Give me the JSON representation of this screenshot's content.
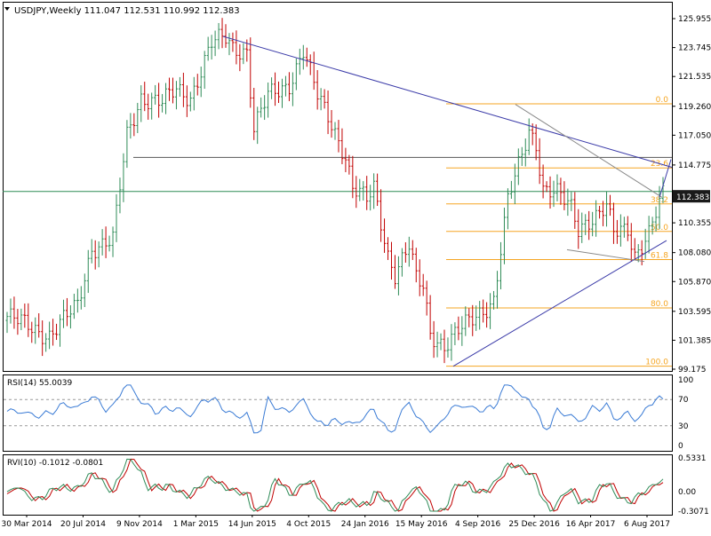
{
  "header": {
    "symbol": "USDJPY,Weekly",
    "ohlc": "111.047 112.531 110.992 112.383"
  },
  "chart_data": {
    "type": "candlestick",
    "price_axis": {
      "ticks": [
        "125.955",
        "123.745",
        "121.535",
        "119.260",
        "117.050",
        "114.775",
        "112.383",
        "110.355",
        "108.080",
        "105.870",
        "103.595",
        "101.385",
        "99.175"
      ],
      "ylim": [
        99.175,
        125.955
      ],
      "current_price": "112.383"
    },
    "x_axis": {
      "ticks": [
        "30 Mar 2014",
        "20 Jul 2014",
        "9 Nov 2014",
        "1 Mar 2015",
        "14 Jun 2015",
        "4 Oct 2015",
        "24 Jan 2016",
        "15 May 2016",
        "4 Sep 2016",
        "25 Dec 2016",
        "16 Apr 2017",
        "6 Aug 2017"
      ]
    },
    "price_anchors": [
      [
        0,
        103.2
      ],
      [
        8,
        102.2
      ],
      [
        12,
        101.8
      ],
      [
        20,
        104.0
      ],
      [
        24,
        108.5
      ],
      [
        30,
        109.0
      ],
      [
        34,
        117.0
      ],
      [
        38,
        120.0
      ],
      [
        44,
        119.5
      ],
      [
        48,
        120.5
      ],
      [
        52,
        120.0
      ],
      [
        58,
        124.0
      ],
      [
        62,
        124.5
      ],
      [
        64,
        123.8
      ],
      [
        68,
        123.5
      ],
      [
        70,
        117.5
      ],
      [
        74,
        120.0
      ],
      [
        80,
        121.0
      ],
      [
        84,
        123.5
      ],
      [
        88,
        120.0
      ],
      [
        92,
        118.0
      ],
      [
        96,
        115.5
      ],
      [
        98,
        113.0
      ],
      [
        102,
        112.0
      ],
      [
        104,
        113.0
      ],
      [
        108,
        108.0
      ],
      [
        110,
        106.5
      ],
      [
        114,
        108.5
      ],
      [
        116,
        106.0
      ],
      [
        118,
        105.5
      ],
      [
        120,
        102.0
      ],
      [
        124,
        101.0
      ],
      [
        126,
        101.5
      ],
      [
        130,
        102.5
      ],
      [
        134,
        103.5
      ],
      [
        138,
        104.5
      ],
      [
        142,
        112.0
      ],
      [
        146,
        115.5
      ],
      [
        148,
        117.5
      ],
      [
        150,
        116.5
      ],
      [
        152,
        113.0
      ],
      [
        156,
        112.5
      ],
      [
        160,
        111.5
      ],
      [
        162,
        110.0
      ],
      [
        164,
        110.5
      ],
      [
        168,
        111.0
      ],
      [
        170,
        111.5
      ],
      [
        172,
        109.5
      ],
      [
        176,
        110.0
      ],
      [
        178,
        108.0
      ],
      [
        182,
        109.5
      ],
      [
        184,
        111.0
      ],
      [
        186,
        112.383
      ]
    ],
    "fibonacci": {
      "levels": [
        {
          "label": "0.0",
          "price": 119.45
        },
        {
          "label": "23.6",
          "price": 114.55
        },
        {
          "label": "38.2",
          "price": 111.8
        },
        {
          "label": "50.0",
          "price": 109.7
        },
        {
          "label": "61.8",
          "price": 107.55
        },
        {
          "label": "80.0",
          "price": 103.85
        },
        {
          "label": "100.0",
          "price": 99.4
        }
      ],
      "color": "#f5a623"
    },
    "horizontal_levels": [
      {
        "price": 115.35,
        "color": "#555555"
      },
      {
        "price": 112.75,
        "color": "#2e8b57"
      }
    ],
    "colors": {
      "bull": "#2e8b57",
      "bear": "#c00000",
      "trendline": "#3a3aa8",
      "grid": "#e6e6e6"
    },
    "rsi": {
      "label": "RSI(14) 55.0039",
      "ticks": [
        "100",
        "70",
        "30",
        "0"
      ],
      "levels": [
        70,
        30
      ],
      "color": "#3a7bd5"
    },
    "rvi": {
      "label": "RVI(10) -0.1012 -0.0801",
      "ticks": [
        "0.5331",
        "0.00",
        "-0.3071"
      ],
      "ylim": [
        -0.3071,
        0.5331
      ],
      "main_color": "#2e8b57",
      "signal_color": "#c00000"
    }
  }
}
